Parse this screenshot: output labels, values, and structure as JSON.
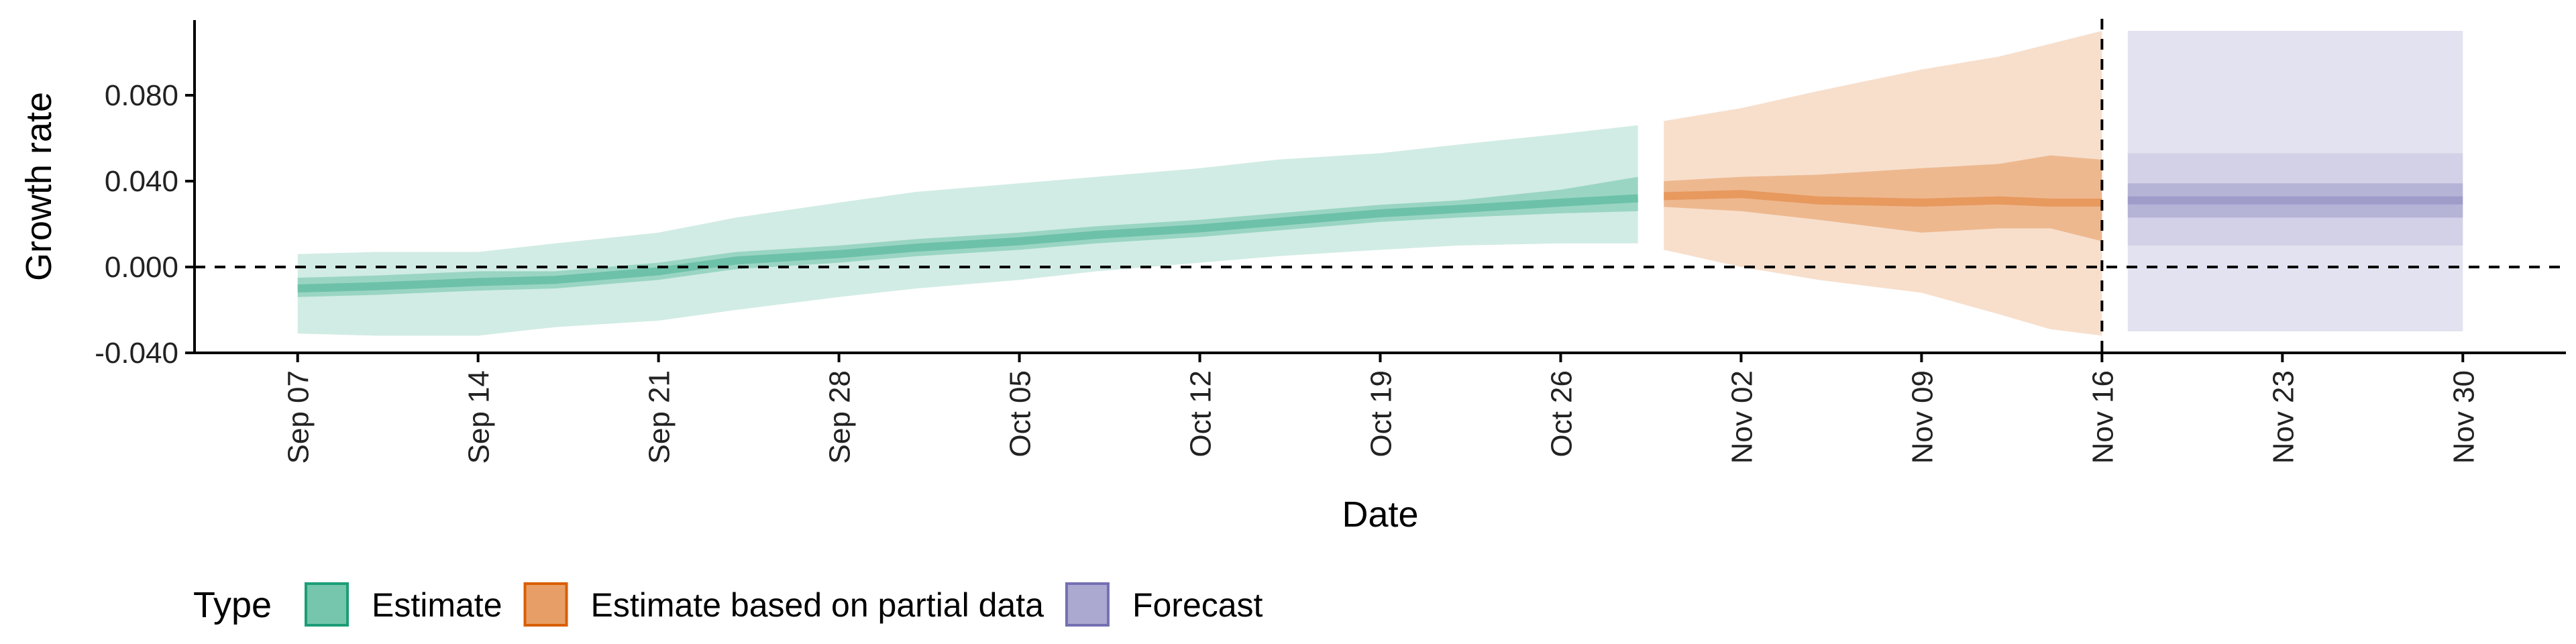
{
  "chart_data": {
    "type": "area",
    "xlabel": "Date",
    "ylabel": "Growth rate",
    "x_ticks": [
      "Sep 07",
      "Sep 14",
      "Sep 21",
      "Sep 28",
      "Oct 05",
      "Oct 12",
      "Oct 19",
      "Oct 26",
      "Nov 02",
      "Nov 09",
      "Nov 16",
      "Nov 23",
      "Nov 30"
    ],
    "y_ticks": [
      "-0.040",
      "0.000",
      "0.040",
      "0.080"
    ],
    "xlim": [
      "2020-09-03",
      "2020-12-04"
    ],
    "ylim": [
      -0.04,
      0.115
    ],
    "reference_lines": {
      "y": 0.0,
      "x": "2020-11-16"
    },
    "legend": {
      "title": "Type",
      "position": "bottom"
    },
    "series": [
      {
        "name": "Estimate",
        "color": "#1B9E77",
        "dates": [
          "2020-09-07",
          "2020-09-10",
          "2020-09-14",
          "2020-09-17",
          "2020-09-21",
          "2020-09-24",
          "2020-09-28",
          "2020-10-01",
          "2020-10-05",
          "2020-10-08",
          "2020-10-12",
          "2020-10-15",
          "2020-10-19",
          "2020-10-22",
          "2020-10-26",
          "2020-10-29"
        ],
        "median": [
          -0.01,
          -0.009,
          -0.007,
          -0.006,
          -0.002,
          0.003,
          0.006,
          0.009,
          0.012,
          0.015,
          0.018,
          0.021,
          0.025,
          0.027,
          0.03,
          0.032
        ],
        "inner_lower": [
          -0.014,
          -0.013,
          -0.011,
          -0.01,
          -0.006,
          -0.001,
          0.002,
          0.005,
          0.008,
          0.011,
          0.014,
          0.017,
          0.021,
          0.023,
          0.025,
          0.026
        ],
        "inner_upper": [
          -0.005,
          -0.004,
          -0.002,
          -0.002,
          0.002,
          0.007,
          0.01,
          0.013,
          0.016,
          0.019,
          0.022,
          0.025,
          0.029,
          0.031,
          0.036,
          0.042
        ],
        "outer_lower": [
          -0.031,
          -0.032,
          -0.032,
          -0.028,
          -0.025,
          -0.02,
          -0.014,
          -0.01,
          -0.006,
          -0.002,
          0.002,
          0.005,
          0.008,
          0.01,
          0.011,
          0.011
        ],
        "outer_upper": [
          0.006,
          0.007,
          0.007,
          0.011,
          0.016,
          0.023,
          0.03,
          0.035,
          0.039,
          0.042,
          0.046,
          0.05,
          0.053,
          0.057,
          0.062,
          0.066
        ]
      },
      {
        "name": "Estimate based on partial data",
        "color": "#D95F02",
        "dates": [
          "2020-10-30",
          "2020-11-02",
          "2020-11-05",
          "2020-11-09",
          "2020-11-12",
          "2020-11-14",
          "2020-11-16"
        ],
        "median": [
          0.033,
          0.034,
          0.031,
          0.03,
          0.031,
          0.03,
          0.03
        ],
        "inner_lower": [
          0.028,
          0.026,
          0.022,
          0.016,
          0.018,
          0.018,
          0.012
        ],
        "inner_upper": [
          0.04,
          0.042,
          0.043,
          0.046,
          0.048,
          0.052,
          0.05
        ],
        "outer_lower": [
          0.008,
          0.0,
          -0.006,
          -0.012,
          -0.022,
          -0.029,
          -0.032
        ],
        "outer_upper": [
          0.068,
          0.074,
          0.082,
          0.092,
          0.098,
          0.104,
          0.11
        ]
      },
      {
        "name": "Forecast",
        "color": "#7570B3",
        "dates": [
          "2020-11-17",
          "2020-11-30"
        ],
        "median": [
          0.031,
          0.031
        ],
        "inner_lower": [
          0.023,
          0.023
        ],
        "inner_upper": [
          0.039,
          0.039
        ],
        "outer_lower": [
          -0.03,
          -0.03
        ],
        "outer_upper": [
          0.11,
          0.11
        ],
        "mid_lower": [
          0.01,
          0.01
        ],
        "mid_upper": [
          0.053,
          0.053
        ]
      }
    ]
  }
}
